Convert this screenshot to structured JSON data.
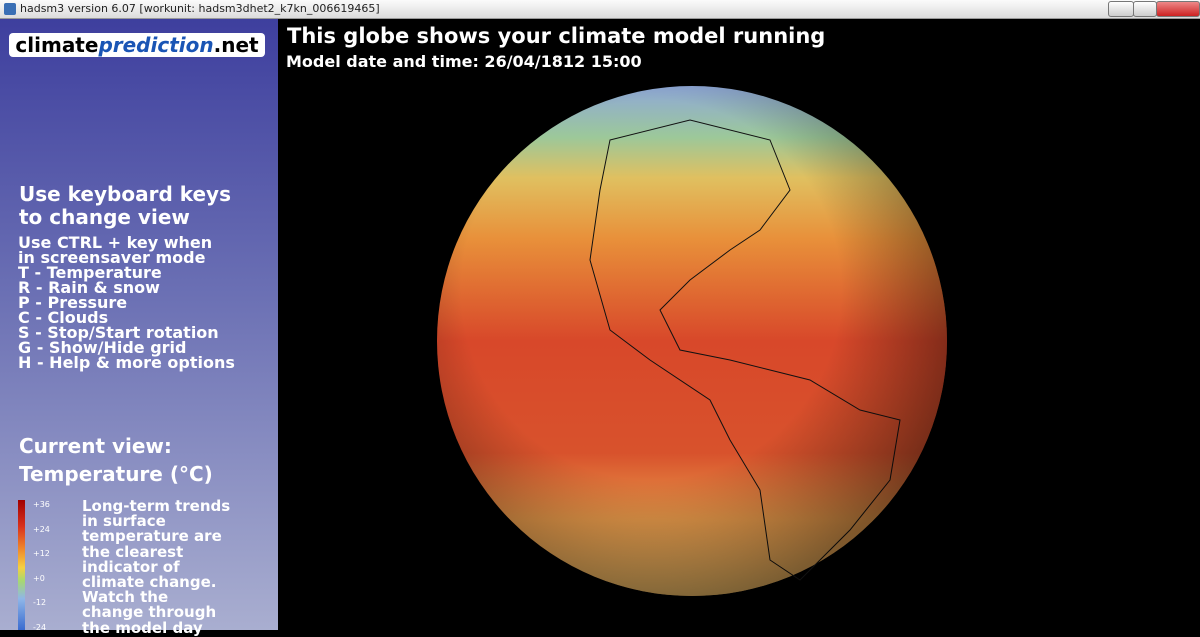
{
  "window": {
    "title": "hadsm3 version 6.07 [workunit: hadsm3dhet2_k7kn_006619465]"
  },
  "logo": {
    "part1": "climate",
    "part2": "prediction",
    "part3": ".net"
  },
  "sidebar": {
    "heading": [
      "Use keyboard keys",
      "to change view"
    ],
    "instructions": [
      "Use CTRL + key when",
      "in screensaver mode",
      "T - Temperature",
      "R - Rain & snow",
      "P - Pressure",
      "C - Clouds",
      "S - Stop/Start rotation",
      "G - Show/Hide grid",
      "H - Help & more options"
    ],
    "current_view_label": "Current view:",
    "current_view": "Temperature (°C)",
    "scale_labels": [
      "+36",
      "+24",
      "+12",
      "+0",
      "-12",
      "-24"
    ],
    "description": [
      "Long-term trends",
      "in surface",
      "temperature are",
      "the clearest",
      "indicator of",
      "climate change.",
      "Watch the",
      "change through",
      "the model day"
    ]
  },
  "main": {
    "title": "This globe shows your climate model running",
    "model_date": "Model date and time: 26/04/1812 15:00"
  }
}
